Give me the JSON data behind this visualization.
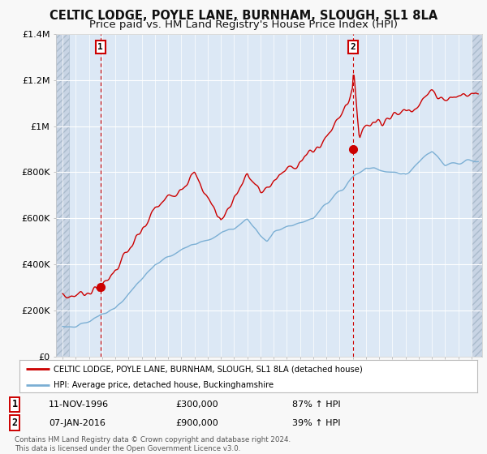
{
  "title": "CELTIC LODGE, POYLE LANE, BURNHAM, SLOUGH, SL1 8LA",
  "subtitle": "Price paid vs. HM Land Registry's House Price Index (HPI)",
  "title_fontsize": 10.5,
  "subtitle_fontsize": 9.5,
  "fig_bg_color": "#f8f8f8",
  "plot_bg_color": "#dce8f5",
  "hatch_bg_color": "#d0d8e8",
  "line1_color": "#cc0000",
  "line2_color": "#7bafd4",
  "vline_color": "#cc0000",
  "marker1_x": 1996.87,
  "marker1_y": 300000,
  "marker2_x": 2016.03,
  "marker2_y": 900000,
  "legend_line1": "CELTIC LODGE, POYLE LANE, BURNHAM, SLOUGH, SL1 8LA (detached house)",
  "legend_line2": "HPI: Average price, detached house, Buckinghamshire",
  "annotation1_label": "1",
  "annotation1_date": "11-NOV-1996",
  "annotation1_price": "£300,000",
  "annotation1_hpi": "87% ↑ HPI",
  "annotation2_label": "2",
  "annotation2_date": "07-JAN-2016",
  "annotation2_price": "£900,000",
  "annotation2_hpi": "39% ↑ HPI",
  "footer": "Contains HM Land Registry data © Crown copyright and database right 2024.\nThis data is licensed under the Open Government Licence v3.0.",
  "ylim": [
    0,
    1400000
  ],
  "xlim_start": 1993.5,
  "xlim_end": 2025.8,
  "hatch_left_end": 1994.5,
  "hatch_right_start": 2025.0
}
